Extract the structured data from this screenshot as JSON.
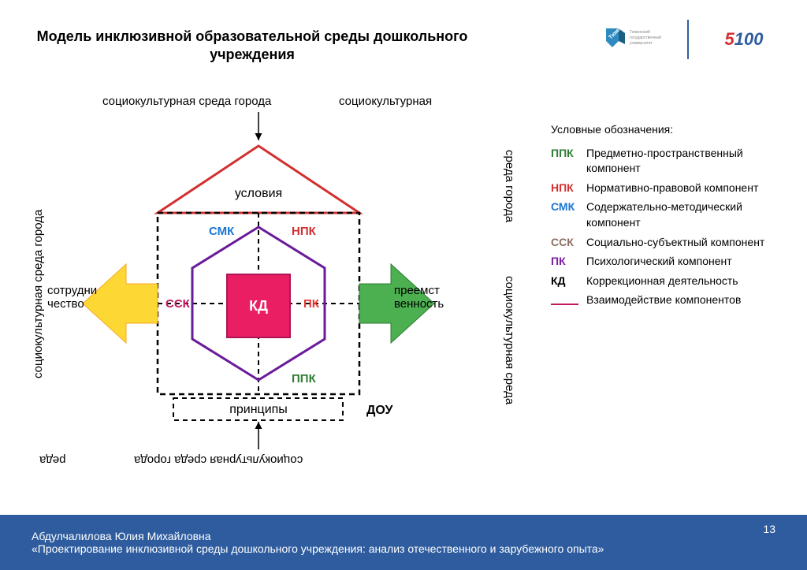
{
  "title": "Модель инклюзивной образовательной среды дошкольного учреждения",
  "logos": {
    "logo1_text": "ТюмГУ",
    "logo1_color": "#2e8bc0",
    "divider_color": "#2e5c9e",
    "logo2_5": "5",
    "logo2_100": "100",
    "logo2_red": "#d32f2f",
    "logo2_blue": "#2e5c9e"
  },
  "diagram": {
    "outer_label_top_left": "социокультурная среда города",
    "outer_label_top_right": "социокультурная",
    "outer_label_left": "социокультурная среда города",
    "outer_label_right_top": "среда города",
    "outer_label_right_bottom": "социокультурная среда",
    "outer_label_bottom": "социокультурная среда города",
    "outer_label_bottom_left": "реда",
    "roof_label": "условия",
    "left_arrow_label": "сотрудни\nчество",
    "right_arrow_label": "преемст\nвенность",
    "center_label": "КД",
    "bottom_label": "принципы",
    "dou_label": "ДОУ",
    "quadrants": {
      "smk": "СМК",
      "npk": "НПК",
      "ssk": "ССК",
      "pk": "ПК",
      "ppk": "ППК"
    },
    "colors": {
      "roof_line": "#d32f2f",
      "dashed_box": "#000000",
      "dashed_inner": "#000000",
      "hexagon": "#6a1b9a",
      "center_square": "#e91e63",
      "center_square_dark": "#c2185b",
      "arrow_left": "#fdd835",
      "arrow_right": "#4caf50",
      "smk": "#1976d2",
      "npk": "#d32f2f",
      "ssk": "#c2185b",
      "pk": "#e53935",
      "ppk": "#2e7d32",
      "kd_text": "#ffffff",
      "text": "#000000"
    }
  },
  "legend": {
    "title": "Условные обозначения:",
    "items": [
      {
        "code": "ППК",
        "desc": "Предметно-пространственный компонент",
        "color": "#2e7d32"
      },
      {
        "code": "НПК",
        "desc": "Нормативно-правовой компонент",
        "color": "#d32f2f"
      },
      {
        "code": "СМК",
        "desc": "Содержательно-методический компонент",
        "color": "#1976d2"
      },
      {
        "code": "ССК",
        "desc": "Социально-субъектный компонент",
        "color": "#8d6e63"
      },
      {
        "code": "ПК",
        "desc": "Психологический компонент",
        "color": "#7b1fa2"
      },
      {
        "code": "КД",
        "desc": "Коррекционная деятельность",
        "color": "#000000"
      }
    ],
    "line_item": {
      "desc": "Взаимодействие компонентов",
      "color": "#c2185b"
    }
  },
  "footer": {
    "author": "Абдулчалилова Юлия Михайловна",
    "subtitle": "«Проектирование инклюзивной среды дошкольного учреждения: анализ отечественного и зарубежного опыта»",
    "page": "13",
    "bg": "#2e5c9e"
  }
}
